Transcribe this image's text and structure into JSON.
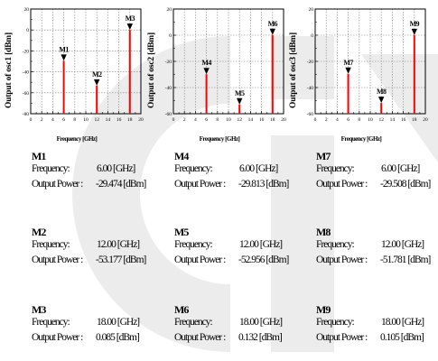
{
  "colors": {
    "stem": "#ff0000",
    "marker": "#000000",
    "watermark": "#e4e4e4"
  },
  "frequency_label": "Frequency:",
  "power_label": "Output Power :",
  "charts": [
    {
      "ylabel": "Output of osc1 [dBm]",
      "xlabel": "Frequency [GHz]",
      "xticks": [
        "0",
        "2",
        "4",
        "6",
        "8",
        "10",
        "12",
        "14",
        "16",
        "18",
        "20"
      ],
      "yticks": [
        "20",
        "0",
        "-20",
        "-40",
        "-60",
        "-80"
      ],
      "markers": [
        {
          "name": "M1",
          "frequency": "6.00 [GHz]",
          "power": "-29.474 [dBm]"
        },
        {
          "name": "M2",
          "frequency": "12.00 [GHz]",
          "power": "-53.177 [dBm]"
        },
        {
          "name": "M3",
          "frequency": "18.00 [GHz]",
          "power": "0.085 [dBm]"
        }
      ]
    },
    {
      "ylabel": "Output of osc2 [dBm]",
      "xlabel": "Frequency [GHz]",
      "xticks": [
        "0",
        "2",
        "4",
        "6",
        "8",
        "10",
        "12",
        "14",
        "16",
        "18",
        "20"
      ],
      "yticks": [
        "20",
        "0",
        "-20",
        "-40",
        "-60"
      ],
      "markers": [
        {
          "name": "M4",
          "frequency": "6.00 [GHz]",
          "power": "-29.813 [dBm]"
        },
        {
          "name": "M5",
          "frequency": "12.00 [GHz]",
          "power": "-52.956 [dBm]"
        },
        {
          "name": "M6",
          "frequency": "18.00 [GHz]",
          "power": "0.132 [dBm]"
        }
      ]
    },
    {
      "ylabel": "Output of osc3 [dBm]",
      "xlabel": "Frequency [GHz]",
      "xticks": [
        "0",
        "2",
        "4",
        "6",
        "8",
        "10",
        "12",
        "14",
        "16",
        "18",
        "20"
      ],
      "yticks": [
        "20",
        "0",
        "-20",
        "-40",
        "-60"
      ],
      "markers": [
        {
          "name": "M7",
          "frequency": "6.00 [GHz]",
          "power": "-29.508 [dBm]"
        },
        {
          "name": "M8",
          "frequency": "12.00 [GHz]",
          "power": "-51.781 [dBm]"
        },
        {
          "name": "M9",
          "frequency": "18.00 [GHz]",
          "power": "0.105 [dBm]"
        }
      ]
    }
  ],
  "chart_data": [
    {
      "type": "bar",
      "xlabel": "Frequency [GHz]",
      "ylabel": "Output of osc1 [dBm]",
      "xlim": [
        0,
        20
      ],
      "ylim": [
        -80,
        20
      ],
      "grid": true,
      "series": [
        {
          "name": "",
          "x": [
            6,
            12,
            18
          ],
          "y": [
            -29.474,
            -53.177,
            0.085
          ]
        }
      ],
      "annotations": [
        "M1",
        "M2",
        "M3"
      ]
    },
    {
      "type": "bar",
      "xlabel": "Frequency [GHz]",
      "ylabel": "Output of osc2 [dBm]",
      "xlim": [
        0,
        20
      ],
      "ylim": [
        -60,
        20
      ],
      "grid": true,
      "series": [
        {
          "name": "",
          "x": [
            6,
            12,
            18
          ],
          "y": [
            -29.813,
            -52.956,
            0.132
          ]
        }
      ],
      "annotations": [
        "M4",
        "M5",
        "M6"
      ]
    },
    {
      "type": "bar",
      "xlabel": "Frequency [GHz]",
      "ylabel": "Output of osc3 [dBm]",
      "xlim": [
        0,
        20
      ],
      "ylim": [
        -60,
        20
      ],
      "grid": true,
      "series": [
        {
          "name": "",
          "x": [
            6,
            12,
            18
          ],
          "y": [
            -29.508,
            -51.781,
            0.105
          ]
        }
      ],
      "annotations": [
        "M7",
        "M8",
        "M9"
      ]
    }
  ]
}
